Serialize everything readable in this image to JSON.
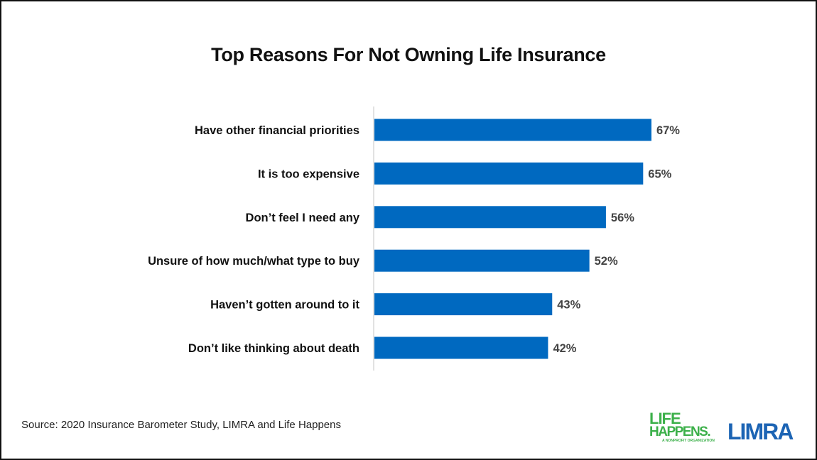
{
  "chart_data": {
    "type": "bar",
    "orientation": "horizontal",
    "title": "Top Reasons For Not Owning Life Insurance",
    "categories": [
      "Have other financial priorities",
      "It is too expensive",
      "Don’t feel I need any",
      "Unsure of how much/what type to buy",
      "Haven’t gotten around to it",
      "Don’t like thinking about death"
    ],
    "values": [
      67,
      65,
      56,
      52,
      43,
      42
    ],
    "labels": [
      "67%",
      "65%",
      "56%",
      "52%",
      "43%",
      "42%"
    ],
    "unit": "%",
    "xlim": [
      0,
      100
    ],
    "grid": false,
    "bar_color": "#0069c0"
  },
  "source": "Source: 2020 Insurance Barometer Study, LIMRA and Life Happens",
  "logos": {
    "life_happens": {
      "line1": "LIFE",
      "line2": "HAPPENS.",
      "tagline": "A NONPROFIT ORGANIZATION",
      "color": "#3cb04a"
    },
    "limra": {
      "text": "LIMRA",
      "color": "#1c64b4"
    }
  }
}
